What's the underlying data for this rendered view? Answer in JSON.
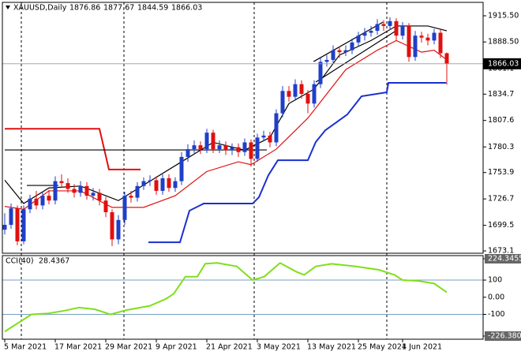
{
  "chart_data": [
    {
      "type": "candlestick",
      "title": "XAUUSD,Daily",
      "up_color": "#1f3fc8",
      "down_color": "#e01010",
      "series": [
        {
          "open": [
            1695,
            1700,
            1717,
            1683,
            1716,
            1727,
            1720,
            1730,
            1725,
            1745,
            1743,
            1737,
            1733,
            1740,
            1730,
            1733,
            1725,
            1713,
            1685,
            1705,
            1730,
            1728,
            1740,
            1745,
            1746,
            1735,
            1748,
            1738,
            1745,
            1770,
            1778,
            1782,
            1778,
            1795,
            1778,
            1782,
            1777,
            1780,
            1775,
            1785,
            1768,
            1790,
            1792,
            1785,
            1815,
            1838,
            1832,
            1845,
            1835,
            1825,
            1845,
            1868,
            1870,
            1880,
            1878,
            1880,
            1888,
            1895,
            1898,
            1900,
            1907,
            1905,
            1910,
            1895,
            1905,
            1873,
            1895,
            1893,
            1890,
            1898,
            1876.86
          ],
          "high": [
            1712,
            1722,
            1720,
            1720,
            1731,
            1735,
            1734,
            1736,
            1750,
            1752,
            1748,
            1742,
            1745,
            1744,
            1738,
            1737,
            1729,
            1716,
            1710,
            1734,
            1735,
            1744,
            1749,
            1751,
            1750,
            1752,
            1752,
            1749,
            1775,
            1783,
            1787,
            1786,
            1799,
            1798,
            1787,
            1786,
            1784,
            1784,
            1789,
            1788,
            1794,
            1797,
            1796,
            1819,
            1843,
            1843,
            1850,
            1849,
            1839,
            1849,
            1872,
            1875,
            1885,
            1884,
            1885,
            1892,
            1899,
            1903,
            1905,
            1912,
            1911,
            1914,
            1913,
            1909,
            1908,
            1900,
            1899,
            1897,
            1902,
            1901,
            1877.67
          ],
          "low": [
            1690,
            1696,
            1679,
            1680,
            1712,
            1716,
            1716,
            1721,
            1721,
            1738,
            1733,
            1728,
            1729,
            1726,
            1725,
            1720,
            1708,
            1678,
            1680,
            1700,
            1723,
            1724,
            1736,
            1740,
            1731,
            1731,
            1734,
            1734,
            1741,
            1765,
            1774,
            1773,
            1774,
            1774,
            1774,
            1772,
            1772,
            1770,
            1771,
            1760,
            1765,
            1786,
            1780,
            1781,
            1811,
            1827,
            1828,
            1830,
            1815,
            1821,
            1841,
            1863,
            1866,
            1872,
            1874,
            1876,
            1884,
            1890,
            1894,
            1896,
            1900,
            1901,
            1890,
            1891,
            1868,
            1869,
            1888,
            1885,
            1886,
            1872,
            1844.59
          ],
          "close": [
            1700,
            1717,
            1683,
            1716,
            1727,
            1720,
            1730,
            1725,
            1745,
            1743,
            1737,
            1733,
            1740,
            1730,
            1733,
            1725,
            1713,
            1685,
            1705,
            1730,
            1728,
            1740,
            1745,
            1746,
            1735,
            1748,
            1738,
            1745,
            1770,
            1778,
            1782,
            1778,
            1795,
            1778,
            1782,
            1777,
            1780,
            1775,
            1785,
            1768,
            1790,
            1792,
            1785,
            1815,
            1838,
            1832,
            1845,
            1835,
            1825,
            1845,
            1868,
            1870,
            1880,
            1878,
            1880,
            1888,
            1895,
            1898,
            1900,
            1907,
            1905,
            1910,
            1895,
            1905,
            1873,
            1895,
            1893,
            1890,
            1898,
            1876.86,
            1866.03
          ]
        }
      ],
      "overlays": [
        {
          "color": "#000000",
          "x": [
            0,
            3,
            7,
            12,
            16,
            18,
            23,
            28,
            33,
            38,
            42,
            45,
            49,
            53,
            58,
            62,
            67,
            70
          ],
          "values": [
            1746,
            1722,
            1738,
            1740,
            1730,
            1725,
            1745,
            1765,
            1785,
            1777,
            1790,
            1825,
            1840,
            1875,
            1890,
            1905,
            1905,
            1900
          ]
        },
        {
          "color": "#e01010",
          "x": [
            0,
            3,
            7,
            12,
            17,
            22,
            27,
            32,
            37,
            39,
            43,
            48,
            51,
            54,
            59,
            62,
            66,
            68,
            70
          ],
          "values": [
            1719,
            1716,
            1735,
            1735,
            1718,
            1718,
            1730,
            1755,
            1765,
            1762,
            1778,
            1810,
            1835,
            1860,
            1880,
            1890,
            1878,
            1880,
            1870
          ]
        },
        {
          "color": "#e01010",
          "x": [
            0,
            15,
            16.5,
            21.5
          ],
          "values": [
            1799,
            1799,
            1757,
            1757
          ]
        },
        {
          "color": "#000000",
          "x": [
            0,
            41.5
          ],
          "values": [
            1777.2,
            1777.2
          ]
        },
        {
          "color": "#000000",
          "x": [
            3.5,
            8.5
          ],
          "values": [
            1740.6,
            1740.6
          ]
        },
        {
          "color": "#1a2fd0",
          "x": [
            22.75,
            27.75,
            29.25,
            31.5,
            39.25,
            40.25,
            41.75,
            43.25,
            48,
            49.25,
            50.75,
            52,
            54.25,
            56.5,
            60.5,
            60.75,
            69.9
          ],
          "values": [
            1682,
            1682,
            1714.6,
            1721.9,
            1721.9,
            1728.4,
            1751.2,
            1766.6,
            1766.6,
            1785.4,
            1797.4,
            1803.2,
            1813.8,
            1832.5,
            1836.6,
            1846.4,
            1846.4
          ]
        },
        {
          "color": "#000000",
          "x": [
            48.9,
            59.9
          ],
          "values": [
            1868.3,
            1909
          ]
        },
        {
          "color": "#000000",
          "x": [
            49.25,
            61.75
          ],
          "values": [
            1847.2,
            1899.2
          ]
        }
      ],
      "xlim": [
        -0.75,
        75.75
      ],
      "xticks": [
        {
          "value": 0,
          "label": "5 Mar 2021"
        },
        {
          "value": 8,
          "label": "17 Mar 2021"
        },
        {
          "value": 16,
          "label": "29 Mar 2021"
        },
        {
          "value": 24,
          "label": "9 Apr 2021"
        },
        {
          "value": 32,
          "label": "21 Apr 2021"
        },
        {
          "value": 40,
          "label": "3 May 2021"
        },
        {
          "value": 48,
          "label": "13 May 2021"
        },
        {
          "value": 56,
          "label": "25 May 2021"
        },
        {
          "value": 63,
          "label": "4 Jun 2021"
        }
      ],
      "ylim": [
        1669.9,
        1931.77
      ],
      "yticks": [
        {
          "value": 1915.5,
          "label": "1915.50"
        },
        {
          "value": 1888.5,
          "label": "1888.50"
        },
        1861.1,
        1834.7,
        1807.6,
        1780.3,
        1753.9,
        1726.7,
        1699.5,
        1673.1
      ]
    },
    {
      "type": "line",
      "title": "CCI(40)",
      "color": "#7ee01a",
      "x": [
        0,
        4.25,
        6.75,
        9.25,
        11.75,
        14.25,
        16.75,
        19.25,
        23,
        25.5,
        26.75,
        28.6,
        30.5,
        31.75,
        33.6,
        36.75,
        39.25,
        41.1,
        43.6,
        46.1,
        47.4,
        49.25,
        51.75,
        55.5,
        59.25,
        61.75,
        63,
        65.5,
        68,
        70
      ],
      "values": [
        -200,
        -100,
        -95,
        -80,
        -60,
        -70,
        -100,
        -75,
        -50,
        -10,
        20,
        120,
        120,
        195,
        200,
        180,
        100,
        120,
        200,
        150,
        130,
        180,
        195,
        180,
        160,
        130,
        100,
        95,
        80,
        28.4367
      ],
      "xlim": [
        -0.75,
        75.75
      ],
      "ylim": [
        -226.3807,
        224.3455
      ],
      "yticks": [
        224.3455,
        100,
        {
          "value": 0,
          "label": "0.00"
        },
        -100,
        -226.3807
      ],
      "levels": [
        100,
        -100
      ]
    }
  ]
}
